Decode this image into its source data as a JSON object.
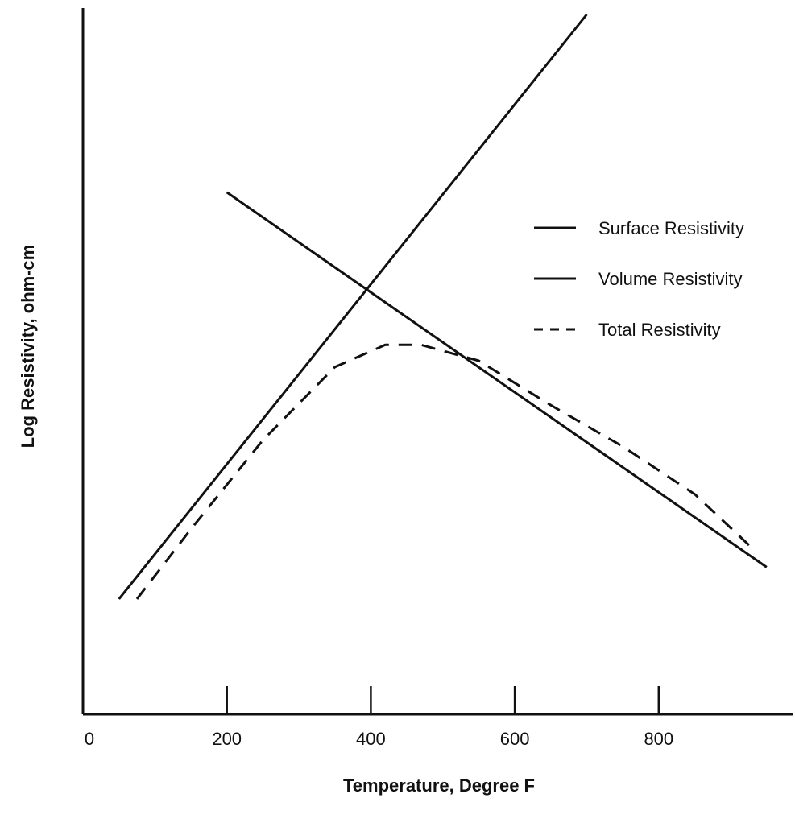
{
  "chart_data": {
    "type": "line",
    "title": "",
    "xlabel": "Temperature, Degree F",
    "ylabel": "Log Resistivity, ohm-cm",
    "x_ticks": [
      0,
      200,
      400,
      600,
      800
    ],
    "xlim": [
      0,
      980
    ],
    "y_ticks": [],
    "grid": false,
    "legend_position": "right",
    "series": [
      {
        "name": "Surface Resistivity",
        "style": "solid",
        "x": [
          50,
          700
        ],
        "y": [
          0.08,
          1.0
        ]
      },
      {
        "name": "Volume Resistivity",
        "style": "solid",
        "x": [
          200,
          950
        ],
        "y": [
          0.72,
          0.13
        ]
      },
      {
        "name": "Total Resistivity",
        "style": "dashed",
        "x": [
          75,
          150,
          250,
          350,
          420,
          470,
          550,
          650,
          750,
          850,
          930
        ],
        "y": [
          0.08,
          0.19,
          0.33,
          0.445,
          0.48,
          0.48,
          0.455,
          0.385,
          0.32,
          0.245,
          0.16
        ]
      }
    ],
    "colors": {
      "line": "#111111"
    }
  }
}
